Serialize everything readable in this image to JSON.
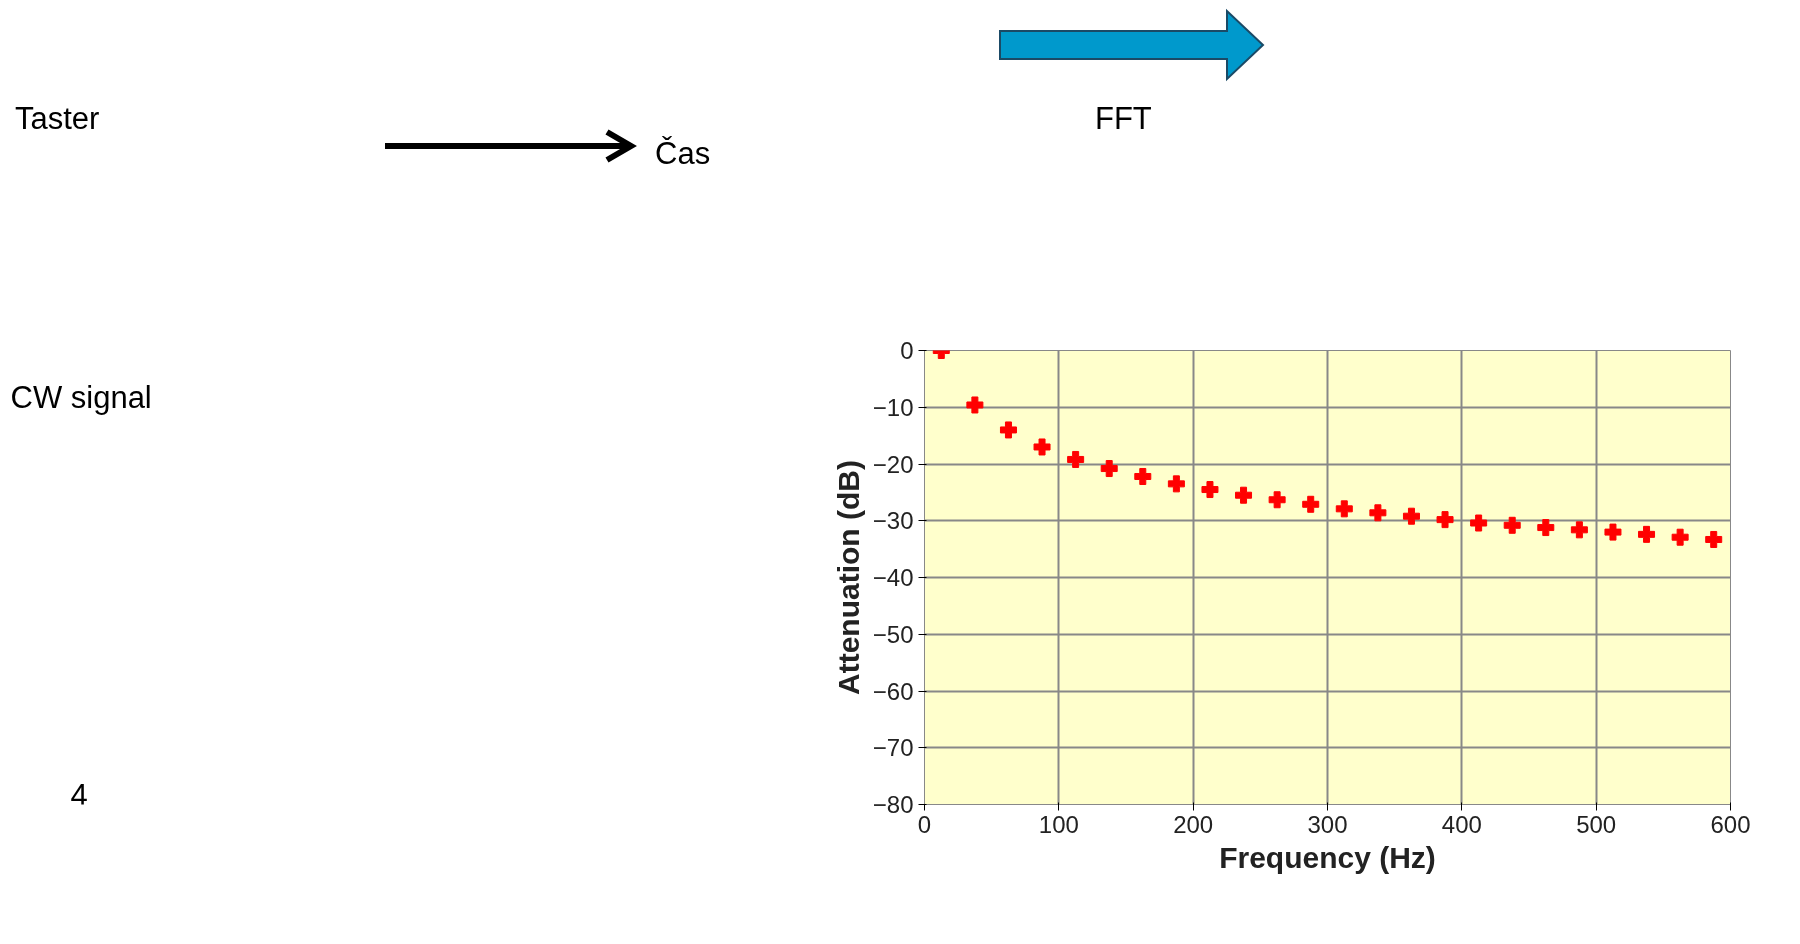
{
  "chart_data": {
    "type": "scatter",
    "xlabel": "Frequency (Hz)",
    "ylabel": "Attenuation (dB)",
    "annotations": [
      "Taster",
      "Čas",
      "FFT",
      "CW signal",
      "4"
    ],
    "x": [
      12.5,
      37.5,
      62.5,
      87.5,
      112.5,
      137.5,
      162.5,
      187.5,
      212.5,
      237.5,
      262.5,
      287.5,
      312.5,
      337.5,
      362.5,
      387.5,
      412.5,
      437.5,
      462.5,
      487.5,
      512.5,
      537.5,
      562.5,
      587.5
    ],
    "series": [
      {
        "color": "#ff0000",
        "values": [
          0,
          -9.6,
          -14,
          -17,
          -19.2,
          -20.8,
          -22.2,
          -23.5,
          -24.5,
          -25.5,
          -26.3,
          -27.1,
          -27.9,
          -28.6,
          -29.2,
          -29.8,
          -30.4,
          -30.8,
          -31.2,
          -31.6,
          -32,
          -32.4,
          -32.9,
          -33.3
        ]
      }
    ],
    "xlim": [
      0,
      600
    ],
    "ylim": [
      -80,
      0
    ],
    "xticks": [
      0,
      100,
      200,
      300,
      400,
      500,
      600
    ],
    "yticks": [
      -80,
      -70,
      -60,
      -50,
      -40,
      -30,
      -20,
      -10,
      0
    ],
    "grid": true,
    "marker": "cross"
  }
}
